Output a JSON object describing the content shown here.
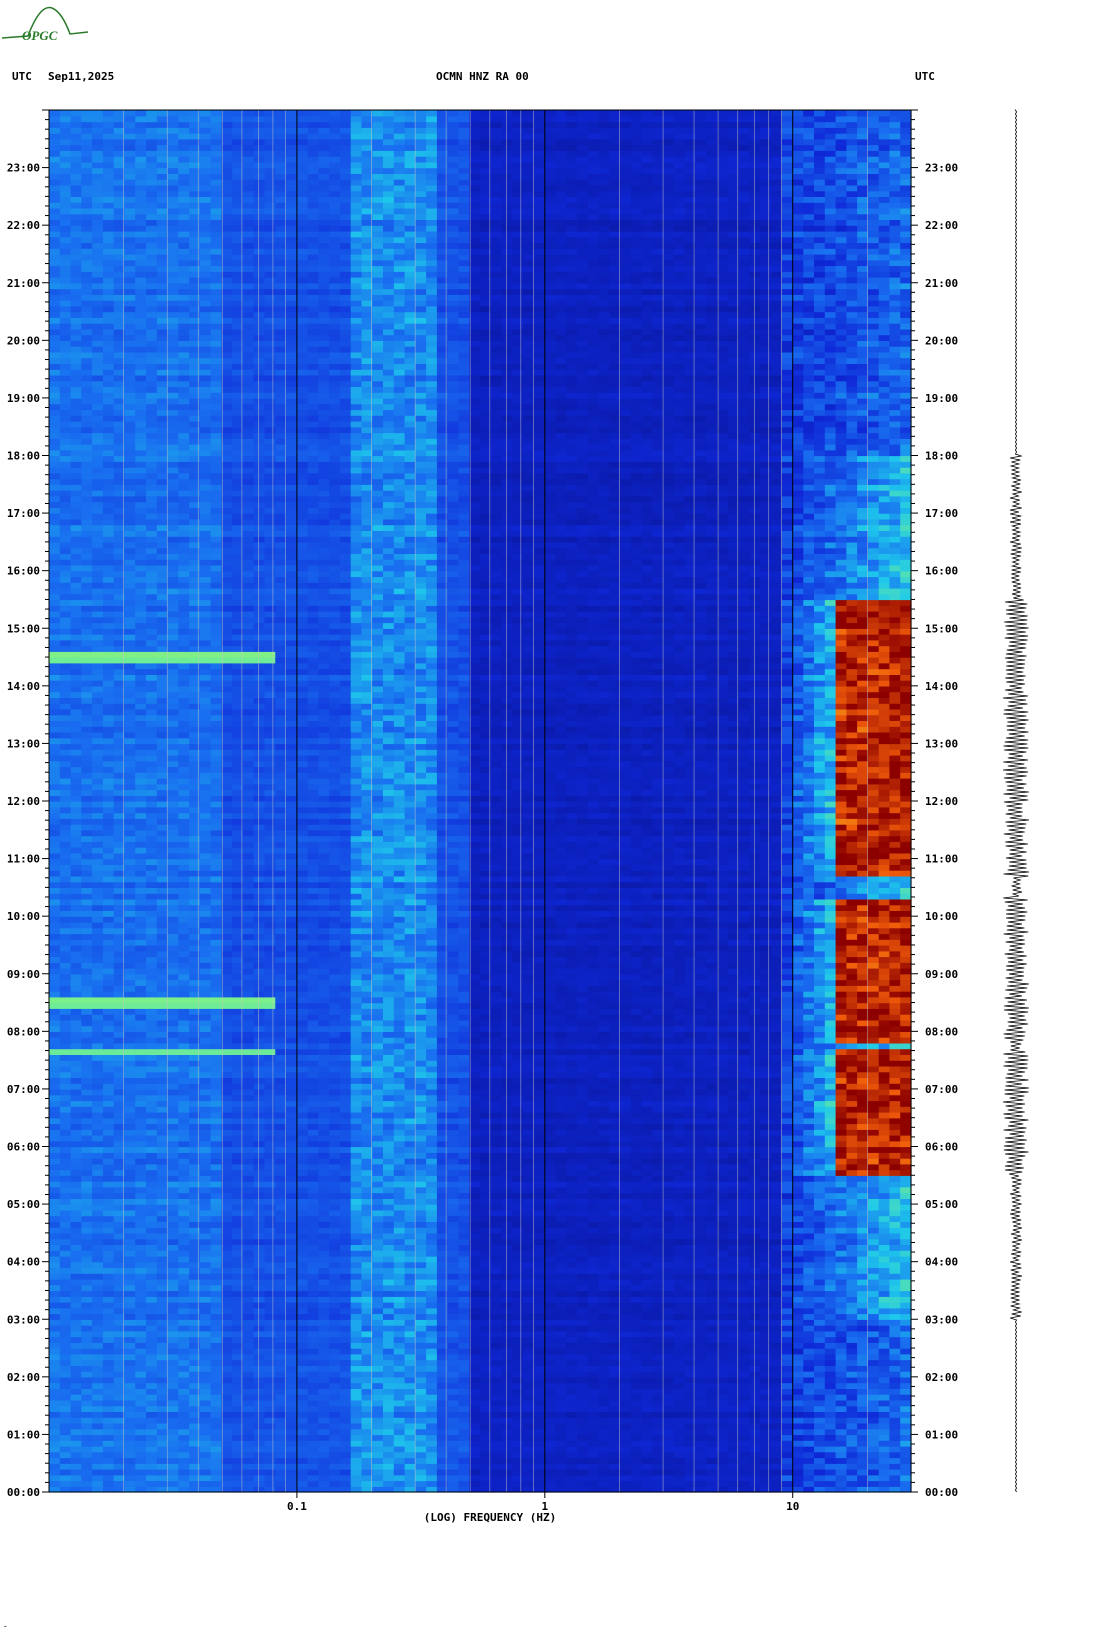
{
  "logo": {
    "text": "OPGC",
    "color": "#2a7a2a"
  },
  "header": {
    "left_tz": "UTC",
    "date": "Sep11,2025",
    "station": "OCMN HNZ RA 00",
    "right_tz": "UTC"
  },
  "footer_mark": "ˬ",
  "colors": {
    "background_blue": "#0a1ec8",
    "gridline": "#c8c8c8",
    "decade_line": "#000000",
    "hot": "#8b0000"
  },
  "chart_data": {
    "type": "heatmap",
    "title": "OCMN HNZ RA 00",
    "xlabel": "(LOG) FREQUENCY (HZ)",
    "ylabel": "",
    "x_scale": "log",
    "xlim": [
      0.01,
      30
    ],
    "x_tick_labels": [
      "0.1",
      "1",
      "10"
    ],
    "x_tick_values": [
      0.1,
      1,
      10
    ],
    "ylim": [
      0,
      24
    ],
    "y_tick_labels": [
      "00:00",
      "01:00",
      "02:00",
      "03:00",
      "04:00",
      "05:00",
      "06:00",
      "07:00",
      "08:00",
      "09:00",
      "10:00",
      "11:00",
      "12:00",
      "13:00",
      "14:00",
      "15:00",
      "16:00",
      "17:00",
      "18:00",
      "19:00",
      "20:00",
      "21:00",
      "22:00",
      "23:00"
    ],
    "noise_band_hz": [
      0.17,
      0.35
    ],
    "high_energy_hz": [
      15,
      30
    ],
    "high_energy_periods_utc": [
      [
        "05:30",
        "07:40"
      ],
      [
        "07:50",
        "10:20"
      ],
      [
        "10:40",
        "15:30"
      ]
    ],
    "low_freq_events_utc": [
      "07:40",
      "08:30",
      "14:30"
    ],
    "grid": true
  }
}
